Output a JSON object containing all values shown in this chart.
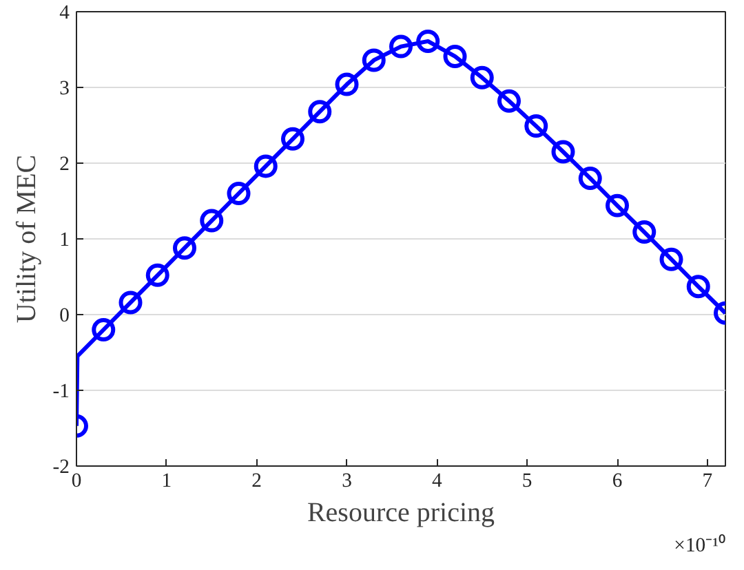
{
  "chart_data": {
    "type": "line",
    "xlabel": "Resource pricing",
    "ylabel": "Utility of MEC",
    "annotations": [
      "×10⁻¹⁰"
    ],
    "series": [
      {
        "color": "#0000ff",
        "marker": "none",
        "x": [
          0,
          0.01,
          0.3,
          0.6,
          0.9,
          1.2,
          1.5,
          1.8,
          2.1,
          2.4,
          2.7,
          3.0,
          3.3,
          3.6,
          3.9,
          4.2,
          4.5,
          4.8,
          5.1,
          5.4,
          5.7,
          6.0,
          6.3,
          6.6,
          6.9,
          7.2
        ],
        "values": [
          -1.47,
          -0.55,
          -0.2,
          0.16,
          0.52,
          0.88,
          1.24,
          1.6,
          1.96,
          2.32,
          2.68,
          3.04,
          3.36,
          3.54,
          3.61,
          3.41,
          3.13,
          2.82,
          2.49,
          2.15,
          1.8,
          1.44,
          1.09,
          0.73,
          0.37,
          0.02
        ]
      },
      {
        "type": "scatter",
        "color": "#0000ff",
        "marker": "circle",
        "x": [
          0,
          0.3,
          0.6,
          0.9,
          1.2,
          1.5,
          1.8,
          2.1,
          2.4,
          2.7,
          3.0,
          3.3,
          3.6,
          3.9,
          4.2,
          4.5,
          4.8,
          5.1,
          5.4,
          5.7,
          6.0,
          6.3,
          6.6,
          6.9,
          7.2
        ],
        "values": [
          -1.47,
          -0.2,
          0.16,
          0.52,
          0.88,
          1.24,
          1.6,
          1.96,
          2.32,
          2.68,
          3.04,
          3.36,
          3.54,
          3.61,
          3.41,
          3.13,
          2.82,
          2.49,
          2.15,
          1.8,
          1.44,
          1.09,
          0.73,
          0.37,
          0.02
        ]
      }
    ],
    "xlim": [
      0,
      7.2
    ],
    "xticks": [
      0,
      1,
      2,
      3,
      4,
      5,
      6,
      7
    ],
    "ylim": [
      -2,
      4
    ],
    "yticks": [
      -2,
      -1,
      0,
      1,
      2,
      3,
      4
    ],
    "grid": "y"
  }
}
